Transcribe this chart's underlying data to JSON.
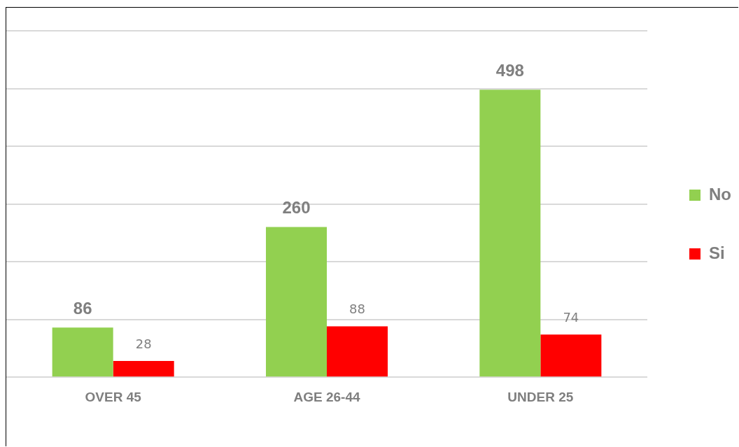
{
  "chart_data": {
    "type": "bar",
    "categories": [
      "OVER 45",
      "AGE 26-44",
      "UNDER 25"
    ],
    "series": [
      {
        "name": "No",
        "color": "#92d050",
        "values": [
          86,
          260,
          498
        ]
      },
      {
        "name": "Si",
        "color": "#ff0000",
        "values": [
          28,
          88,
          74
        ]
      }
    ],
    "ylim": [
      0,
      600
    ],
    "yticks": [
      {
        "value": 0,
        "label": null
      },
      {
        "value": 100,
        "label": null
      },
      {
        "value": 200,
        "label": null
      },
      {
        "value": 300,
        "label": null
      },
      {
        "value": 400,
        "label": null
      },
      {
        "value": 500,
        "label": null
      },
      {
        "value": 600,
        "label": null
      }
    ],
    "tick_labels": "x",
    "grid": "y",
    "legend": "right",
    "data_labels": true
  }
}
